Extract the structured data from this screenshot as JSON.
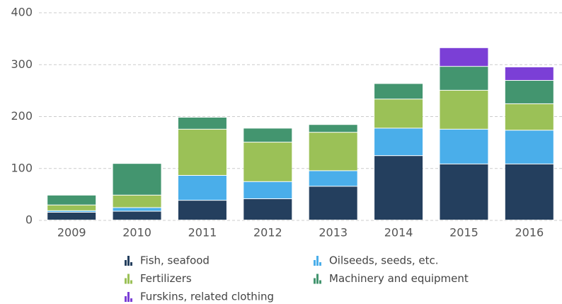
{
  "chart_data": {
    "type": "stacked_bar",
    "categories": [
      "2009",
      "2010",
      "2011",
      "2012",
      "2013",
      "2014",
      "2015",
      "2016"
    ],
    "series": [
      {
        "name": "Fish, seafood",
        "color": "#243f5e",
        "values": [
          15,
          17,
          38,
          41,
          65,
          124,
          108,
          108
        ]
      },
      {
        "name": "Oilseeds, seeds, etc.",
        "color": "#4aaeea",
        "values": [
          3,
          7,
          48,
          33,
          30,
          53,
          67,
          65
        ]
      },
      {
        "name": "Fertilizers",
        "color": "#9bc157",
        "values": [
          11,
          24,
          89,
          76,
          74,
          56,
          75,
          51
        ]
      },
      {
        "name": "Machinery and equipment",
        "color": "#43956f",
        "values": [
          19,
          61,
          23,
          27,
          15,
          30,
          46,
          45
        ]
      },
      {
        "name": "Furskins, related clothing",
        "color": "#7b3fd6",
        "values": [
          0,
          0,
          0,
          0,
          0,
          0,
          36,
          26
        ]
      }
    ],
    "ylim": [
      0,
      400
    ],
    "yticks": [
      0,
      100,
      200,
      300,
      400
    ],
    "grid": true
  }
}
